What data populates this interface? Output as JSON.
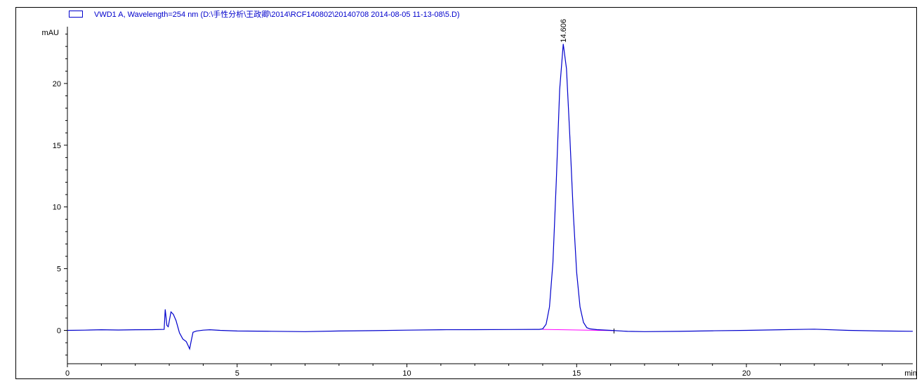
{
  "chart_data": {
    "type": "line",
    "title": "",
    "legend": {
      "label": "VWD1 A, Wavelength=254 nm (D:\\手性分析\\王政卿\\2014\\RCF140802\\20140708 2014-08-05 11-13-08\\5.D)",
      "placement": "top-left"
    },
    "xlabel": "min",
    "ylabel": "mAU",
    "xlim": [
      0,
      24.9
    ],
    "ylim": [
      -2.7,
      24.6
    ],
    "xticks": [
      0,
      5,
      10,
      15,
      20
    ],
    "yticks": [
      0,
      5,
      10,
      15,
      20
    ],
    "grid": false,
    "colors": {
      "trace": "#0000cc",
      "baseline": "#ff00ff",
      "axis": "#000000"
    },
    "series": [
      {
        "points": [
          [
            0,
            0
          ],
          [
            0.5,
            0.02
          ],
          [
            1,
            0.05
          ],
          [
            1.5,
            0.03
          ],
          [
            2,
            0.05
          ],
          [
            2.5,
            0.06
          ],
          [
            2.85,
            0.08
          ],
          [
            2.88,
            1.7
          ],
          [
            2.93,
            0.4
          ],
          [
            2.97,
            0.3
          ],
          [
            3.05,
            1.5
          ],
          [
            3.12,
            1.3
          ],
          [
            3.2,
            0.8
          ],
          [
            3.3,
            -0.2
          ],
          [
            3.4,
            -0.7
          ],
          [
            3.5,
            -0.9
          ],
          [
            3.55,
            -1.2
          ],
          [
            3.6,
            -1.5
          ],
          [
            3.65,
            -0.8
          ],
          [
            3.7,
            -0.15
          ],
          [
            3.8,
            -0.05
          ],
          [
            4,
            0.02
          ],
          [
            4.2,
            0.05
          ],
          [
            4.5,
            0.0
          ],
          [
            5,
            -0.05
          ],
          [
            6,
            -0.07
          ],
          [
            7,
            -0.1
          ],
          [
            8,
            -0.05
          ],
          [
            9,
            -0.02
          ],
          [
            10,
            0.02
          ],
          [
            11,
            0.05
          ],
          [
            12,
            0.06
          ],
          [
            13,
            0.07
          ],
          [
            13.9,
            0.08
          ],
          [
            14.0,
            0.12
          ],
          [
            14.1,
            0.5
          ],
          [
            14.2,
            1.9
          ],
          [
            14.3,
            5.5
          ],
          [
            14.4,
            12.1
          ],
          [
            14.5,
            19.5
          ],
          [
            14.606,
            23.2
          ],
          [
            14.7,
            21.2
          ],
          [
            14.8,
            15.7
          ],
          [
            14.9,
            9.5
          ],
          [
            15.0,
            4.7
          ],
          [
            15.1,
            1.9
          ],
          [
            15.2,
            0.65
          ],
          [
            15.3,
            0.22
          ],
          [
            15.4,
            0.12
          ],
          [
            15.6,
            0.06
          ],
          [
            16,
            0.0
          ],
          [
            16.5,
            -0.08
          ],
          [
            17,
            -0.1
          ],
          [
            18,
            -0.08
          ],
          [
            19,
            -0.03
          ],
          [
            20,
            0.0
          ],
          [
            21,
            0.05
          ],
          [
            22,
            0.1
          ],
          [
            23,
            0.0
          ],
          [
            24,
            -0.05
          ],
          [
            24.9,
            -0.07
          ]
        ]
      }
    ],
    "integration_baseline": [
      [
        14.0,
        0.08
      ],
      [
        16.1,
        -0.02
      ]
    ],
    "annotations": [
      {
        "x": 14.606,
        "y": 23.2,
        "text": "14.606"
      }
    ]
  }
}
